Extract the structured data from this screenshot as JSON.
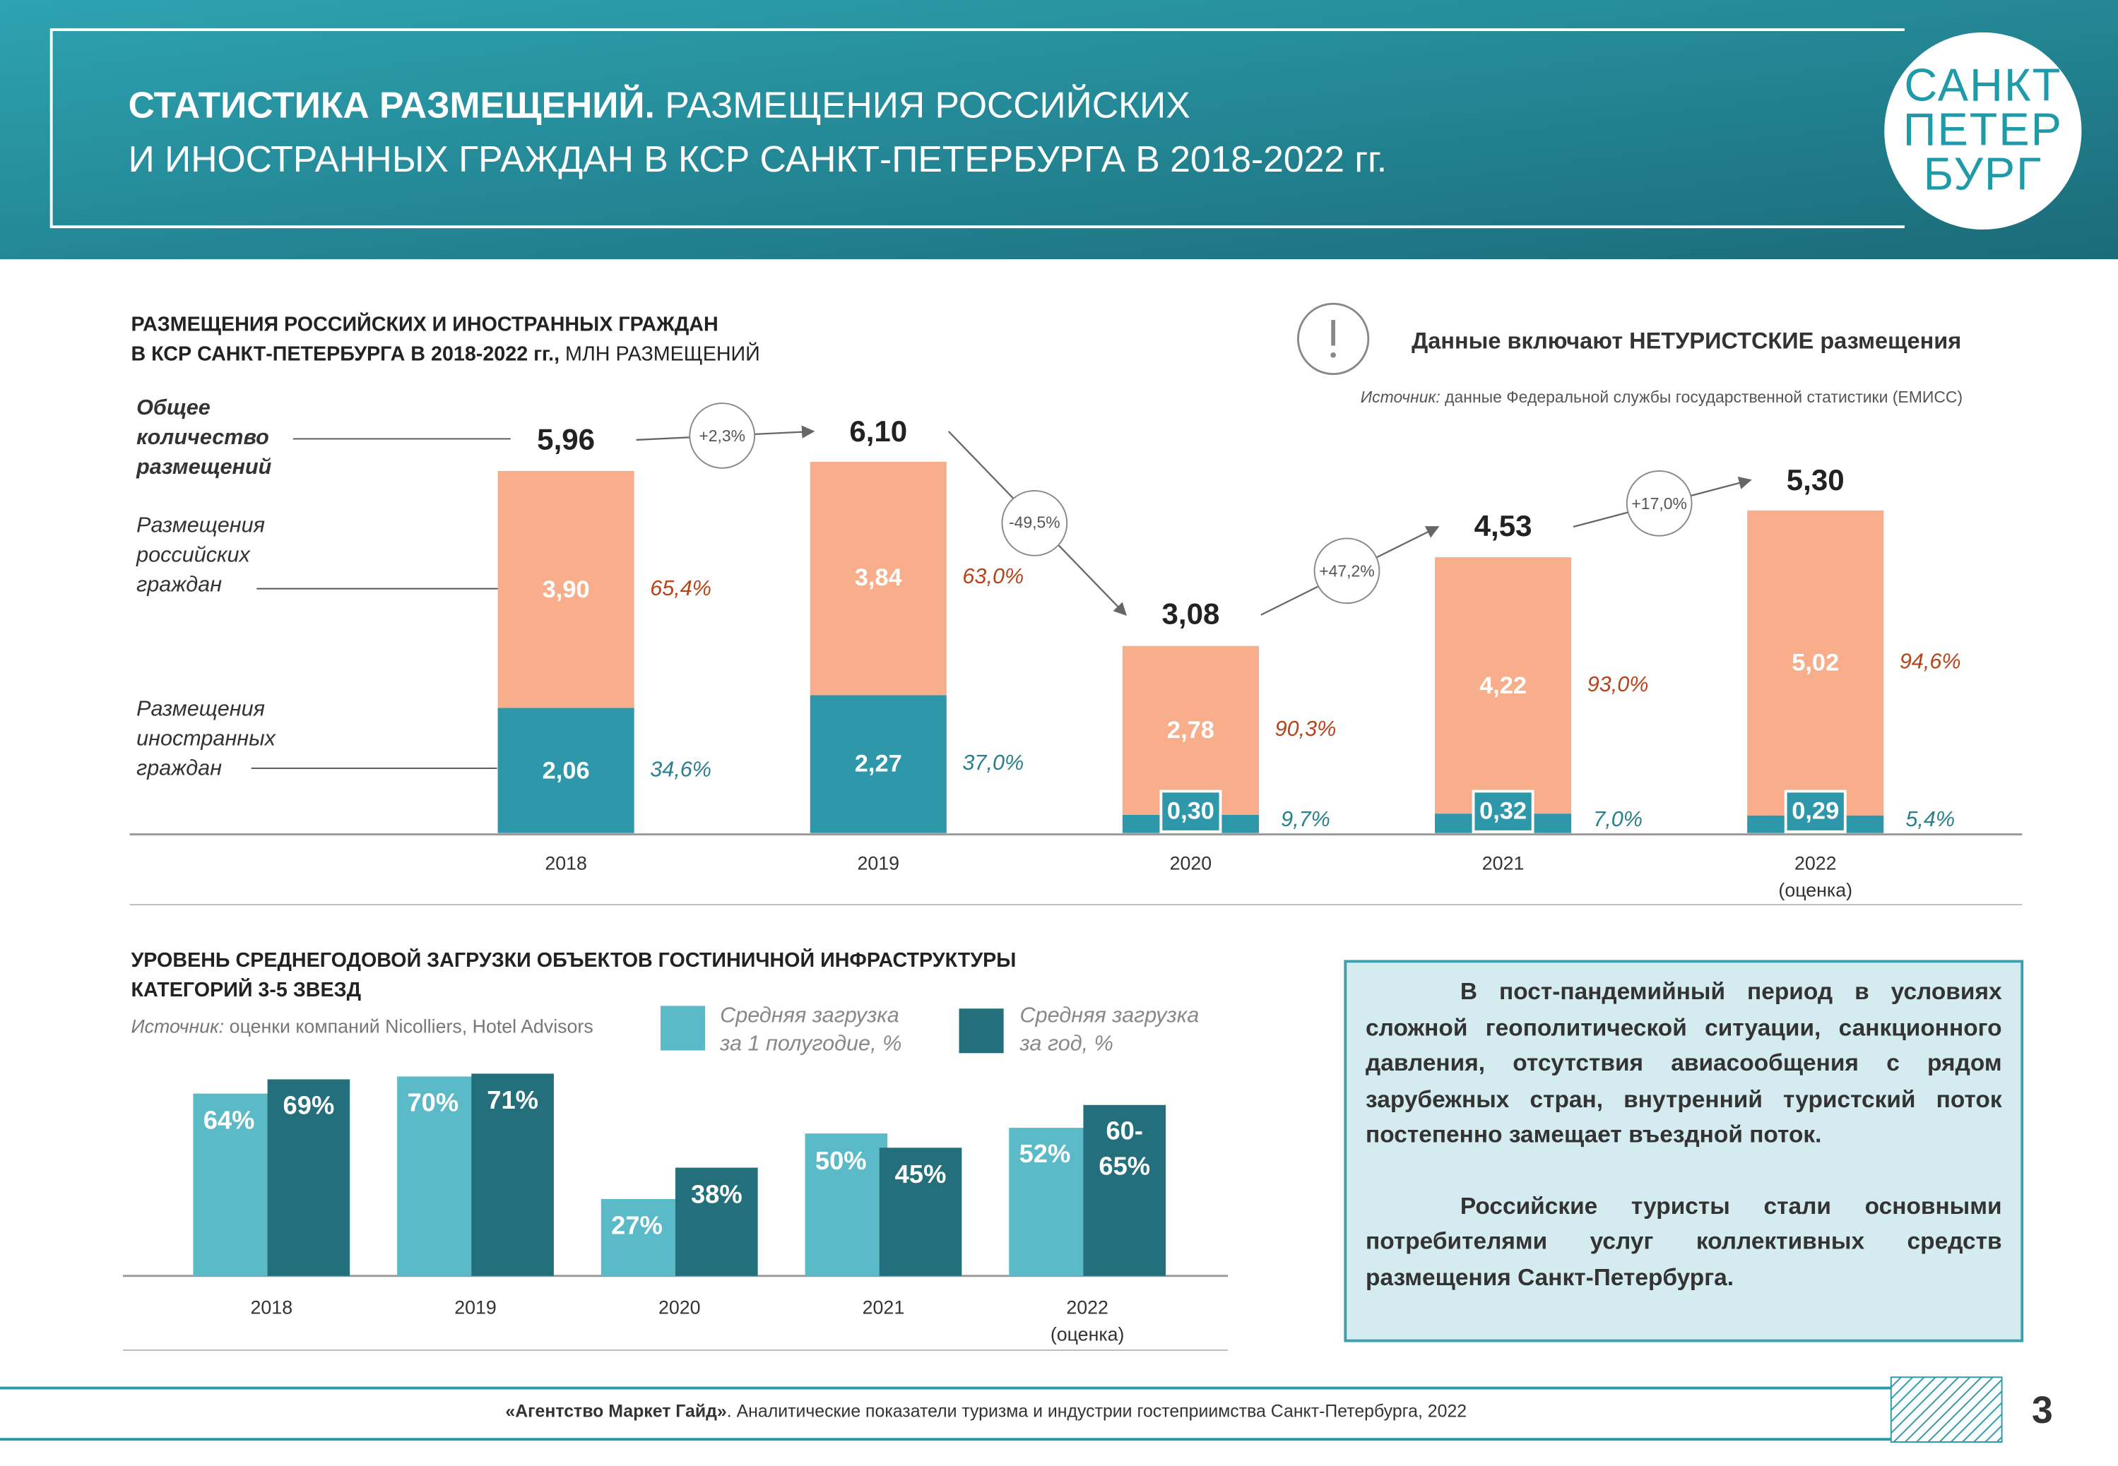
{
  "header": {
    "title_bold": "СТАТИСТИКА РАЗМЕЩЕНИЙ.",
    "title": "РАЗМЕЩЕНИЯ РОССИЙСКИХ\nИ ИНОСТРАННЫХ ГРАЖДАН В КСР САНКТ-ПЕТЕРБУРГА В 2018-2022 гг.",
    "logo": "САНКТ\nПЕТЕР\nБУРГ"
  },
  "chart_data": [
    {
      "type": "stacked_bar",
      "title": "РАЗМЕЩЕНИЯ РОССИЙСКИХ И ИНОСТРАННЫХ ГРАЖДАН\nВ КСР САНКТ-ПЕТЕРБУРГА В 2018-2022 гг.,",
      "unit": "МЛН РАЗМЕЩЕНИЙ",
      "note": "Данные включают НЕТУРИСТСКИЕ размещения",
      "source_label": "Источник:",
      "source": "данные Федеральной службы государственной статистики (ЕМИСС)",
      "categories": [
        "2018",
        "2019",
        "2020",
        "2021",
        "2022\n(оценка)"
      ],
      "series": [
        {
          "name": "Размещения\nиностранных\nграждан",
          "color": "#2e97a9",
          "label_color": "#2a7f8c",
          "values": [
            2.06,
            2.27,
            0.3,
            0.32,
            0.29
          ],
          "value_labels": [
            "2,06",
            "2,27",
            "0,30",
            "0,32",
            "0,29"
          ],
          "shares": [
            34.6,
            37.0,
            9.7,
            7.0,
            5.4
          ],
          "share_labels": [
            "34,6%",
            "37,0%",
            "9,7%",
            "7,0%",
            "5,4%"
          ]
        },
        {
          "name": "Размещения\nроссийских\nграждан",
          "color": "#f8ae8a",
          "label_color": "#b5441a",
          "values": [
            3.9,
            3.84,
            2.78,
            4.22,
            5.02
          ],
          "value_labels": [
            "3,90",
            "3,84",
            "2,78",
            "4,22",
            "5,02"
          ],
          "shares": [
            65.4,
            63.0,
            90.3,
            93.0,
            94.6
          ],
          "share_labels": [
            "65,4%",
            "63,0%",
            "90,3%",
            "93,0%",
            "94,6%"
          ]
        }
      ],
      "totals": {
        "name": "Общее\nколичество\nразмещений",
        "values": [
          5.96,
          6.1,
          3.08,
          4.53,
          5.3
        ],
        "value_labels": [
          "5,96",
          "6,10",
          "3,08",
          "4,53",
          "5,30"
        ]
      },
      "changes": {
        "values": [
          2.3,
          -49.5,
          47.2,
          17.0
        ],
        "value_labels": [
          "+2,3%",
          "-49,5%",
          "+47,2%",
          "+17,0%"
        ]
      }
    },
    {
      "type": "grouped_bar",
      "title": "УРОВЕНЬ СРЕДНЕГОДОВОЙ ЗАГРУЗКИ ОБЪЕКТОВ ГОСТИНИЧНОЙ ИНФРАСТРУКТУРЫ\nКАТЕГОРИЙ 3-5 ЗВЕЗД",
      "source_label": "Источник:",
      "source": "оценки компаний Nicolliers, Hotel Advisors",
      "categories": [
        "2018",
        "2019",
        "2020",
        "2021",
        "2022\n(оценка)"
      ],
      "series": [
        {
          "name": "Средняя загрузка\nза 1 полугодие, %",
          "color": "#5bbac8",
          "values": [
            64,
            70,
            27,
            50,
            52
          ],
          "value_labels": [
            "64%",
            "70%",
            "27%",
            "50%",
            "52%"
          ]
        },
        {
          "name": "Средняя загрузка\nза год, %",
          "color": "#236f7c",
          "values": [
            69,
            71,
            38,
            45,
            60
          ],
          "value_labels": [
            "69%",
            "71%",
            "38%",
            "45%",
            "60-\n65%"
          ]
        }
      ]
    }
  ],
  "summary": {
    "paragraphs": [
      "В пост-пандемийный период в условиях сложной геополитической ситуации, санкционного давления, отсутствия авиасообщения с рядом зарубежных стран, внутренний туристский поток постепенно замещает въездной поток.",
      "Российские туристы стали основными потребителями услуг коллективных средств размещения Санкт-Петербурга."
    ]
  },
  "footer": {
    "agency": "«Агентство Маркет Гайд»",
    "text": ". Аналитические показатели туризма и индустрии гостеприимства Санкт-Петербурга, 2022",
    "page": 3
  }
}
